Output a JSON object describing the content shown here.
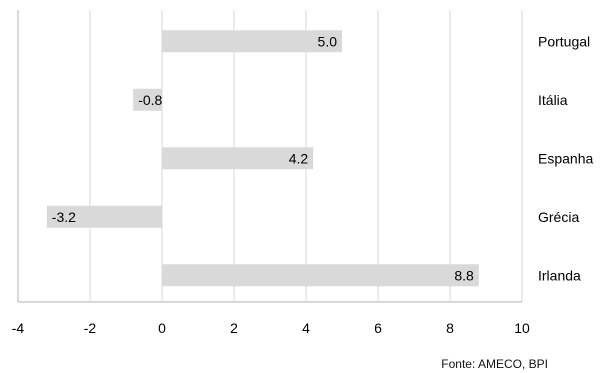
{
  "chart_data": {
    "type": "bar",
    "orientation": "horizontal",
    "categories": [
      "Portugal",
      "Itália",
      "Espanha",
      "Grécia",
      "Irlanda"
    ],
    "values": [
      5.0,
      -0.8,
      4.2,
      -3.2,
      8.8
    ],
    "value_labels": [
      "5.0",
      "-0.8",
      "4.2",
      "-3.2",
      "8.8"
    ],
    "xlim": [
      -4,
      10
    ],
    "xticks": [
      -4,
      -2,
      0,
      2,
      4,
      6,
      8,
      10
    ],
    "xtick_labels": [
      "-4",
      "-2",
      "0",
      "2",
      "4",
      "6",
      "8",
      "10"
    ],
    "grid": "vertical",
    "bar_color": "#d9d9d9",
    "grid_color": "#d9d9d9",
    "axis_color": "#b3b3b3",
    "text_color": "#000000"
  },
  "source": "Fonte: AMECO, BPI"
}
